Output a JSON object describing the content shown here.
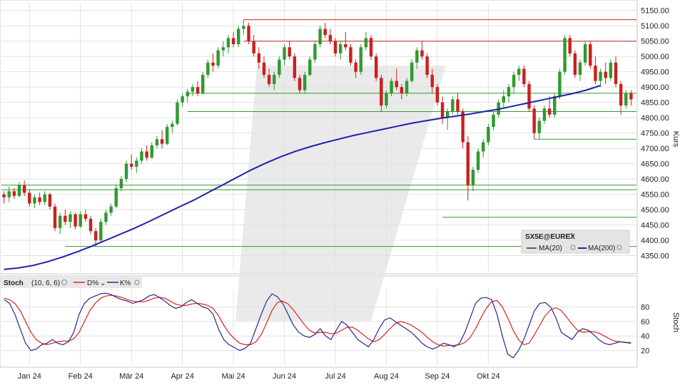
{
  "chart_data": {
    "type": "candlestick",
    "symbol_label": "SX5E@EUREX",
    "price_panel": {
      "ylabel": "Kurs",
      "ylim": [
        4300,
        5175
      ],
      "y_ticks": [
        "4350.00",
        "4400.00",
        "4450.00",
        "4500.00",
        "4550.00",
        "4600.00",
        "4650.00",
        "4700.00",
        "4750.00",
        "4800.00",
        "4850.00",
        "4900.00",
        "4950.00",
        "5000.00",
        "5050.00",
        "5100.00",
        "5150.00"
      ],
      "legend": [
        {
          "label": "MA(20)",
          "color": "#333333"
        },
        {
          "label": "MA(200)",
          "color": "#1e22aa"
        }
      ],
      "candles": [
        [
          4550,
          4560,
          4520,
          4540
        ],
        [
          4540,
          4575,
          4525,
          4560
        ],
        [
          4560,
          4570,
          4535,
          4545
        ],
        [
          4545,
          4590,
          4540,
          4580
        ],
        [
          4580,
          4595,
          4545,
          4555
        ],
        [
          4555,
          4565,
          4510,
          4520
        ],
        [
          4520,
          4550,
          4505,
          4540
        ],
        [
          4540,
          4555,
          4515,
          4525
        ],
        [
          4525,
          4560,
          4515,
          4550
        ],
        [
          4550,
          4555,
          4500,
          4510
        ],
        [
          4510,
          4520,
          4430,
          4440
        ],
        [
          4440,
          4490,
          4420,
          4480
        ],
        [
          4480,
          4500,
          4450,
          4460
        ],
        [
          4460,
          4495,
          4440,
          4485
        ],
        [
          4485,
          4490,
          4435,
          4445
        ],
        [
          4445,
          4495,
          4440,
          4485
        ],
        [
          4485,
          4500,
          4460,
          4470
        ],
        [
          4470,
          4480,
          4420,
          4430
        ],
        [
          4430,
          4440,
          4380,
          4400
        ],
        [
          4400,
          4470,
          4395,
          4460
        ],
        [
          4460,
          4500,
          4450,
          4490
        ],
        [
          4490,
          4520,
          4480,
          4510
        ],
        [
          4510,
          4580,
          4505,
          4570
        ],
        [
          4570,
          4610,
          4560,
          4600
        ],
        [
          4600,
          4660,
          4590,
          4650
        ],
        [
          4650,
          4680,
          4630,
          4640
        ],
        [
          4640,
          4670,
          4620,
          4660
        ],
        [
          4660,
          4700,
          4650,
          4690
        ],
        [
          4690,
          4710,
          4660,
          4670
        ],
        [
          4670,
          4720,
          4665,
          4710
        ],
        [
          4710,
          4740,
          4700,
          4730
        ],
        [
          4730,
          4760,
          4700,
          4715
        ],
        [
          4715,
          4780,
          4710,
          4770
        ],
        [
          4770,
          4790,
          4750,
          4780
        ],
        [
          4780,
          4860,
          4775,
          4850
        ],
        [
          4850,
          4880,
          4835,
          4870
        ],
        [
          4870,
          4895,
          4850,
          4885
        ],
        [
          4885,
          4910,
          4870,
          4900
        ],
        [
          4900,
          4920,
          4870,
          4880
        ],
        [
          4880,
          4950,
          4875,
          4940
        ],
        [
          4940,
          4990,
          4930,
          4980
        ],
        [
          4980,
          5010,
          4950,
          4970
        ],
        [
          4970,
          5030,
          4960,
          5020
        ],
        [
          5020,
          5050,
          5000,
          5030
        ],
        [
          5030,
          5070,
          5010,
          5060
        ],
        [
          5060,
          5080,
          5030,
          5040
        ],
        [
          5040,
          5100,
          5030,
          5090
        ],
        [
          5090,
          5120,
          5070,
          5100
        ],
        [
          5100,
          5110,
          5040,
          5050
        ],
        [
          5050,
          5070,
          5000,
          5010
        ],
        [
          5010,
          5030,
          4960,
          4980
        ],
        [
          4980,
          5000,
          4930,
          4940
        ],
        [
          4940,
          4960,
          4900,
          4910
        ],
        [
          4910,
          4950,
          4890,
          4940
        ],
        [
          4940,
          5000,
          4930,
          4990
        ],
        [
          4990,
          5040,
          4970,
          5030
        ],
        [
          5030,
          5050,
          4990,
          5000
        ],
        [
          5000,
          5010,
          4920,
          4930
        ],
        [
          4930,
          4940,
          4880,
          4890
        ],
        [
          4890,
          4950,
          4880,
          4940
        ],
        [
          4940,
          5000,
          4935,
          4990
        ],
        [
          4990,
          5050,
          4980,
          5040
        ],
        [
          5040,
          5100,
          5030,
          5090
        ],
        [
          5090,
          5110,
          5060,
          5070
        ],
        [
          5070,
          5090,
          5040,
          5050
        ],
        [
          5050,
          5060,
          5000,
          5010
        ],
        [
          5010,
          5050,
          4990,
          5040
        ],
        [
          5040,
          5080,
          5020,
          5030
        ],
        [
          5030,
          5040,
          4970,
          4980
        ],
        [
          4980,
          4990,
          4930,
          4950
        ],
        [
          4950,
          5040,
          4940,
          5030
        ],
        [
          5030,
          5080,
          5020,
          5060
        ],
        [
          5060,
          5070,
          4990,
          5000
        ],
        [
          5000,
          5010,
          4920,
          4930
        ],
        [
          4930,
          4940,
          4820,
          4840
        ],
        [
          4840,
          4890,
          4830,
          4880
        ],
        [
          4880,
          4930,
          4870,
          4920
        ],
        [
          4920,
          4960,
          4890,
          4900
        ],
        [
          4900,
          4910,
          4860,
          4880
        ],
        [
          4880,
          4930,
          4870,
          4920
        ],
        [
          4920,
          4990,
          4915,
          4980
        ],
        [
          4980,
          5030,
          4960,
          5020
        ],
        [
          5020,
          5050,
          4990,
          5000
        ],
        [
          5000,
          5010,
          4930,
          4940
        ],
        [
          4940,
          4960,
          4880,
          4900
        ],
        [
          4900,
          4910,
          4840,
          4850
        ],
        [
          4850,
          4870,
          4780,
          4800
        ],
        [
          4800,
          4830,
          4760,
          4820
        ],
        [
          4820,
          4870,
          4810,
          4860
        ],
        [
          4860,
          4880,
          4810,
          4820
        ],
        [
          4820,
          4830,
          4700,
          4720
        ],
        [
          4720,
          4740,
          4530,
          4580
        ],
        [
          4580,
          4640,
          4560,
          4630
        ],
        [
          4630,
          4700,
          4620,
          4690
        ],
        [
          4690,
          4730,
          4670,
          4720
        ],
        [
          4720,
          4780,
          4710,
          4770
        ],
        [
          4770,
          4820,
          4760,
          4810
        ],
        [
          4810,
          4860,
          4800,
          4850
        ],
        [
          4850,
          4890,
          4830,
          4870
        ],
        [
          4870,
          4910,
          4850,
          4900
        ],
        [
          4900,
          4950,
          4880,
          4940
        ],
        [
          4940,
          4970,
          4920,
          4960
        ],
        [
          4960,
          4970,
          4900,
          4910
        ],
        [
          4910,
          4920,
          4820,
          4830
        ],
        [
          4830,
          4840,
          4730,
          4750
        ],
        [
          4750,
          4800,
          4730,
          4790
        ],
        [
          4790,
          4840,
          4780,
          4830
        ],
        [
          4830,
          4870,
          4800,
          4810
        ],
        [
          4810,
          4880,
          4800,
          4870
        ],
        [
          4870,
          4960,
          4860,
          4950
        ],
        [
          4950,
          5070,
          4940,
          5060
        ],
        [
          5060,
          5070,
          5000,
          5010
        ],
        [
          5010,
          5020,
          4930,
          4940
        ],
        [
          4940,
          4990,
          4920,
          4980
        ],
        [
          4980,
          5050,
          4970,
          5040
        ],
        [
          5040,
          5050,
          4960,
          4970
        ],
        [
          4970,
          5000,
          4910,
          4920
        ],
        [
          4920,
          4960,
          4900,
          4950
        ],
        [
          4950,
          4980,
          4910,
          4930
        ],
        [
          4930,
          4990,
          4920,
          4980
        ],
        [
          4980,
          5000,
          4900,
          4910
        ],
        [
          4910,
          4920,
          4810,
          4840
        ],
        [
          4840,
          4890,
          4830,
          4880
        ],
        [
          4880,
          4890,
          4840,
          4860
        ]
      ],
      "ma200": [
        4305,
        4310,
        4318,
        4330,
        4345,
        4362,
        4380,
        4400,
        4420,
        4440,
        4462,
        4485,
        4508,
        4530,
        4555,
        4580,
        4605,
        4630,
        4652,
        4672,
        4690,
        4705,
        4718,
        4730,
        4742,
        4752,
        4762,
        4772,
        4782,
        4790,
        4798,
        4805,
        4812,
        4820,
        4828,
        4838,
        4848,
        4858,
        4868,
        4878,
        4890,
        4905
      ],
      "ma200_span": [
        0,
        117
      ],
      "resistance_lines": [
        {
          "value": 5120,
          "color": "#cc2222",
          "from": 47
        },
        {
          "value": 5050,
          "color": "#cc2222",
          "from": 47
        }
      ],
      "support_lines": [
        {
          "value": 4880,
          "color": "#339933",
          "from": 37
        },
        {
          "value": 4820,
          "color": "#339933",
          "from": 37
        },
        {
          "value": 4730,
          "color": "#339933",
          "from": 105
        },
        {
          "value": 4580,
          "color": "#339933",
          "from": 0
        },
        {
          "value": 4565,
          "color": "#339933",
          "from": 0
        },
        {
          "value": 4475,
          "color": "#339933",
          "from": 87
        },
        {
          "value": 4380,
          "color": "#339933",
          "from": 13
        }
      ]
    },
    "stoch_panel": {
      "label": "Stoch",
      "params": "(10, 6, 6)",
      "ylabel": "Stoch",
      "ylim": [
        0,
        105
      ],
      "y_ticks": [
        "20",
        "40",
        "60",
        "80"
      ],
      "legend": [
        {
          "label": "D%",
          "color": "#dd2222"
        },
        {
          "label": "K%",
          "color": "#2a2a8a"
        }
      ],
      "k_values": [
        90,
        85,
        70,
        50,
        30,
        20,
        22,
        28,
        30,
        35,
        30,
        28,
        32,
        45,
        70,
        85,
        92,
        95,
        98,
        99,
        97,
        93,
        90,
        88,
        85,
        87,
        90,
        95,
        97,
        93,
        88,
        82,
        78,
        80,
        86,
        90,
        85,
        80,
        78,
        70,
        50,
        35,
        28,
        24,
        20,
        23,
        30,
        50,
        70,
        88,
        98,
        94,
        85,
        70,
        55,
        45,
        40,
        38,
        42,
        50,
        40,
        35,
        48,
        60,
        55,
        45,
        35,
        30,
        25,
        35,
        50,
        62,
        65,
        60,
        55,
        50,
        45,
        38,
        30,
        25,
        22,
        25,
        30,
        28,
        25,
        30,
        45,
        65,
        85,
        92,
        93,
        90,
        70,
        40,
        15,
        10,
        20,
        35,
        55,
        75,
        85,
        86,
        80,
        65,
        45,
        40,
        35,
        45,
        50,
        48,
        42,
        35,
        30,
        28,
        30,
        32,
        31,
        30
      ],
      "d_values": [
        92,
        90,
        85,
        75,
        60,
        45,
        35,
        30,
        28,
        30,
        32,
        33,
        33,
        36,
        45,
        60,
        75,
        85,
        92,
        95,
        96,
        95,
        93,
        90,
        88,
        87,
        87,
        89,
        92,
        93,
        92,
        88,
        84,
        82,
        82,
        84,
        85,
        84,
        82,
        78,
        68,
        55,
        44,
        36,
        30,
        28,
        28,
        32,
        42,
        58,
        75,
        86,
        88,
        84,
        76,
        66,
        56,
        48,
        44,
        45,
        45,
        43,
        44,
        48,
        52,
        52,
        48,
        42,
        36,
        32,
        35,
        42,
        50,
        57,
        60,
        58,
        55,
        50,
        45,
        38,
        32,
        28,
        26,
        27,
        27,
        28,
        31,
        38,
        50,
        65,
        78,
        87,
        89,
        80,
        65,
        48,
        35,
        28,
        30,
        42,
        55,
        68,
        76,
        79,
        75,
        66,
        56,
        48,
        45,
        46,
        46,
        44,
        40,
        36,
        33,
        32,
        31,
        31
      ]
    },
    "x_ticks": [
      "Jan 24",
      "Feb 24",
      "Mär 24",
      "Apr 24",
      "Mai 24",
      "Jun 24",
      "Jul 24",
      "Aug 24",
      "Sep 24",
      "Okt 24"
    ],
    "x_tick_index": [
      5,
      15,
      25,
      35,
      45,
      55,
      65,
      75,
      85,
      95
    ]
  }
}
